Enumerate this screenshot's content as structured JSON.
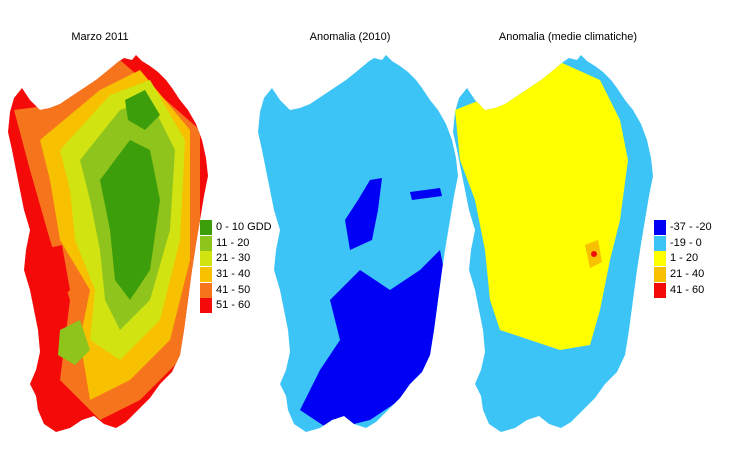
{
  "panels": [
    {
      "title": "Marzo 2011",
      "legend": [
        {
          "label": "0 - 10 GDD",
          "color": "#3c9e0a"
        },
        {
          "label": "11 - 20",
          "color": "#8fc41c"
        },
        {
          "label": "21 - 30",
          "color": "#d2e312"
        },
        {
          "label": "31 - 40",
          "color": "#f7c000"
        },
        {
          "label": "41 - 50",
          "color": "#f6741c"
        },
        {
          "label": "51 - 60",
          "color": "#f50a0a"
        }
      ]
    },
    {
      "title": "Anomalia (2010)",
      "legend": []
    },
    {
      "title": "Anomalia (medie climatiche)",
      "legend": [
        {
          "label": "-37 - -20",
          "color": "#0000f5"
        },
        {
          "label": "-19 - 0",
          "color": "#3cc4f7"
        },
        {
          "label": "1 - 20",
          "color": "#ffff00"
        },
        {
          "label": "21 - 40",
          "color": "#f7c000"
        },
        {
          "label": "41 - 60",
          "color": "#f50a0a"
        }
      ]
    }
  ]
}
